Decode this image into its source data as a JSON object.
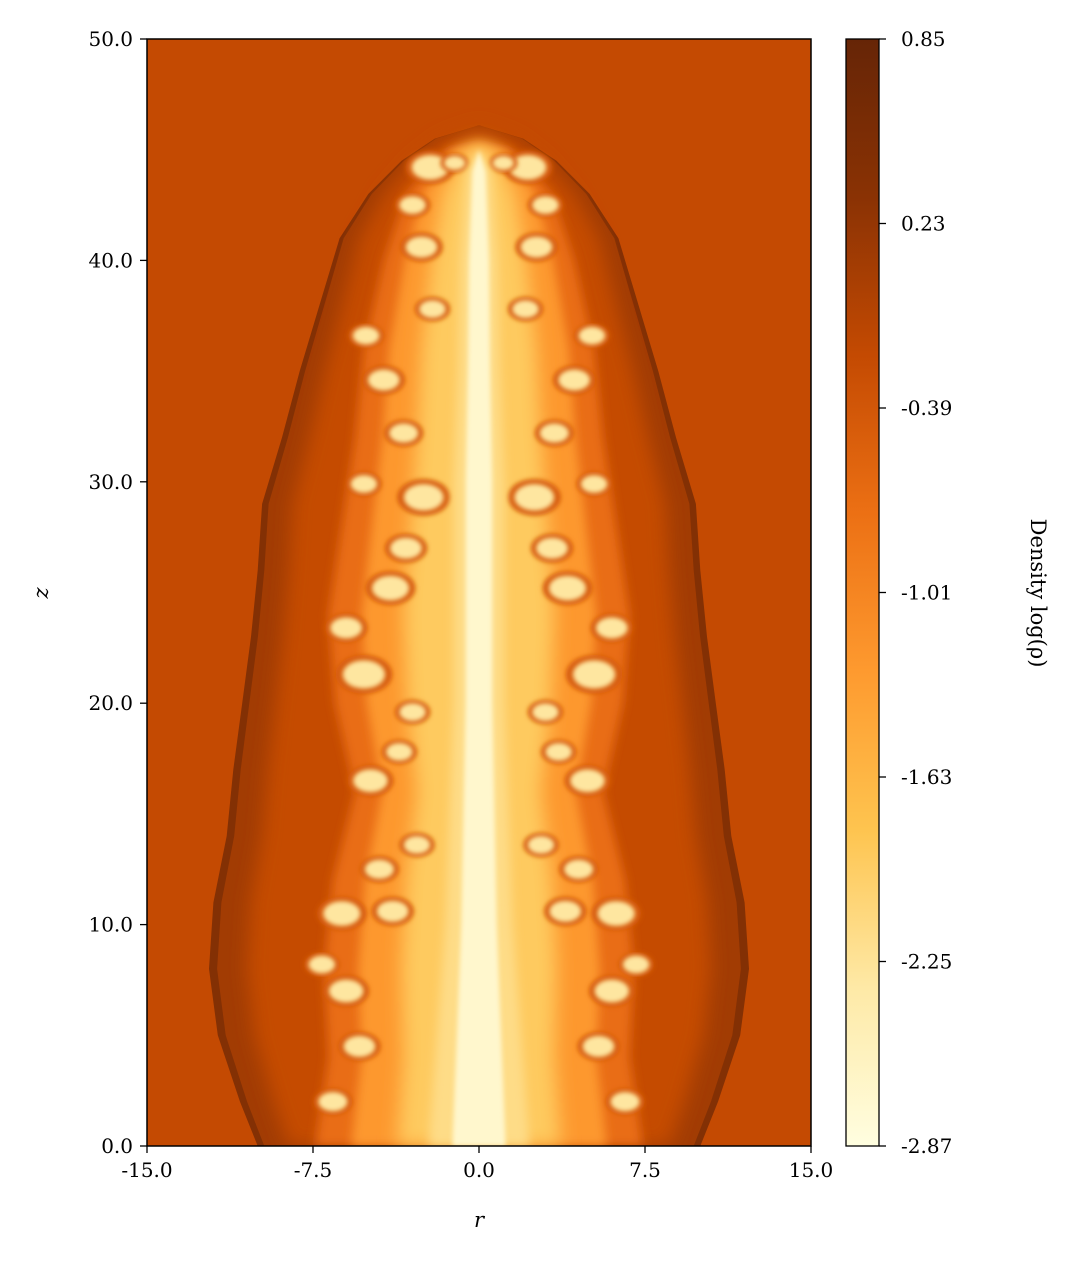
{
  "chart_data": {
    "type": "heatmap",
    "title": "",
    "xlabel": "r",
    "ylabel": "z",
    "xlim": [
      -15.0,
      15.0
    ],
    "ylim": [
      0.0,
      50.0
    ],
    "xticks": [
      -15.0,
      -7.5,
      0.0,
      7.5,
      15.0
    ],
    "xtick_labels": [
      "-15.0",
      "-7.5",
      "0.0",
      "7.5",
      "15.0"
    ],
    "yticks": [
      0.0,
      10.0,
      20.0,
      30.0,
      40.0,
      50.0
    ],
    "ytick_labels": [
      "0.0",
      "10.0",
      "20.0",
      "30.0",
      "40.0",
      "50.0"
    ],
    "colorbar": {
      "label": "Density log(ρ)",
      "min": -2.87,
      "max": 0.85,
      "ticks": [
        0.85,
        0.23,
        -0.39,
        -1.01,
        -1.63,
        -2.25,
        -2.87
      ],
      "tick_labels": [
        "0.85",
        "0.23",
        "-0.39",
        "-1.01",
        "-1.63",
        "-2.25",
        "-2.87"
      ],
      "colors": [
        "#fffee0",
        "#fee9a6",
        "#fec44f",
        "#fe9a2f",
        "#ec7014",
        "#c44a02",
        "#8a3204",
        "#662506"
      ]
    },
    "ambient_value": 0.05,
    "ambient_color": "#c44a02",
    "cocoon_outline": [
      [
        0,
        10.0
      ],
      [
        2,
        10.8
      ],
      [
        5,
        11.8
      ],
      [
        8,
        12.2
      ],
      [
        11,
        12.0
      ],
      [
        14,
        11.4
      ],
      [
        17,
        11.1
      ],
      [
        20,
        10.7
      ],
      [
        23,
        10.3
      ],
      [
        26,
        10.0
      ],
      [
        29,
        9.8
      ],
      [
        32,
        8.9
      ],
      [
        35,
        8.1
      ],
      [
        38,
        7.2
      ],
      [
        41,
        6.3
      ],
      [
        43,
        5.0
      ],
      [
        44.5,
        3.5
      ],
      [
        45.5,
        2.0
      ],
      [
        46.1,
        0.0
      ]
    ],
    "lobe_outline": [
      [
        0,
        7.4
      ],
      [
        4,
        6.8
      ],
      [
        8,
        7.0
      ],
      [
        12,
        6.6
      ],
      [
        16,
        5.6
      ],
      [
        20,
        6.5
      ],
      [
        24,
        6.8
      ],
      [
        28,
        6.2
      ],
      [
        32,
        5.6
      ],
      [
        36,
        5.2
      ],
      [
        40,
        4.3
      ],
      [
        43,
        3.3
      ],
      [
        45,
        1.5
      ],
      [
        45.3,
        0.0
      ]
    ],
    "jet_spine": [
      [
        0,
        1.2
      ],
      [
        5,
        1.0
      ],
      [
        10,
        0.8
      ],
      [
        15,
        0.7
      ],
      [
        20,
        0.6
      ],
      [
        25,
        0.6
      ],
      [
        30,
        0.6
      ],
      [
        35,
        0.5
      ],
      [
        40,
        0.45
      ],
      [
        44,
        0.3
      ],
      [
        45,
        0.0
      ]
    ],
    "features": [
      {
        "z": 2.0,
        "r": 6.6,
        "s": 0.55
      },
      {
        "z": 4.5,
        "r": 5.4,
        "s": 0.6
      },
      {
        "z": 7.0,
        "r": 6.0,
        "s": 0.65
      },
      {
        "z": 8.2,
        "r": 7.1,
        "s": 0.5
      },
      {
        "z": 10.5,
        "r": 6.2,
        "s": 0.7
      },
      {
        "z": 10.6,
        "r": 3.9,
        "s": 0.6
      },
      {
        "z": 12.5,
        "r": 4.5,
        "s": 0.55
      },
      {
        "z": 13.6,
        "r": 2.8,
        "s": 0.5
      },
      {
        "z": 16.5,
        "r": 4.9,
        "s": 0.65
      },
      {
        "z": 17.8,
        "r": 3.6,
        "s": 0.5
      },
      {
        "z": 19.6,
        "r": 3.0,
        "s": 0.5
      },
      {
        "z": 21.3,
        "r": 5.2,
        "s": 0.8
      },
      {
        "z": 23.4,
        "r": 6.0,
        "s": 0.6
      },
      {
        "z": 25.2,
        "r": 4.0,
        "s": 0.7
      },
      {
        "z": 27.0,
        "r": 3.3,
        "s": 0.6
      },
      {
        "z": 29.3,
        "r": 2.5,
        "s": 0.75
      },
      {
        "z": 29.9,
        "r": 5.2,
        "s": 0.5
      },
      {
        "z": 32.2,
        "r": 3.4,
        "s": 0.55
      },
      {
        "z": 34.6,
        "r": 4.3,
        "s": 0.6
      },
      {
        "z": 36.6,
        "r": 5.1,
        "s": 0.5
      },
      {
        "z": 37.8,
        "r": 2.1,
        "s": 0.5
      },
      {
        "z": 40.6,
        "r": 2.6,
        "s": 0.6
      },
      {
        "z": 42.5,
        "r": 3.0,
        "s": 0.5
      },
      {
        "z": 44.2,
        "r": 2.2,
        "s": 0.7
      },
      {
        "z": 44.4,
        "r": 1.1,
        "s": 0.4
      }
    ]
  }
}
